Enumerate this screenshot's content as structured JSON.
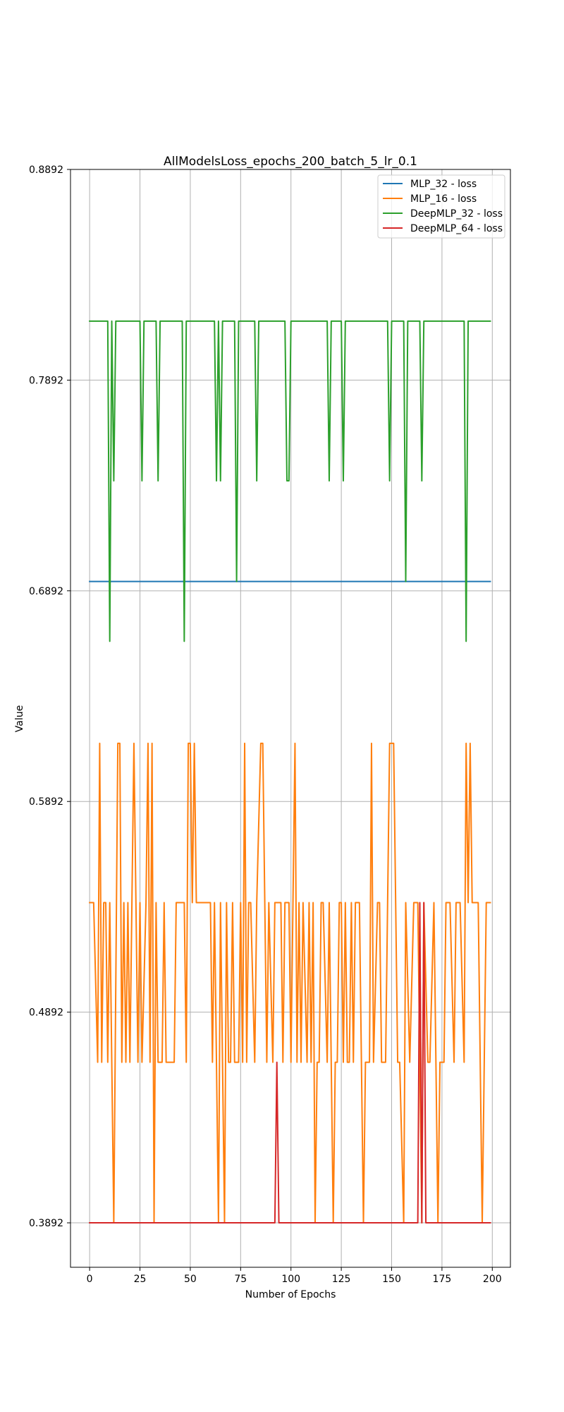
{
  "chart_data": {
    "type": "line",
    "title": "AllModelsLoss_epochs_200_batch_5_lr_0.1",
    "xlabel": "Number of Epochs",
    "ylabel": "Value",
    "xlim": [
      -9.5,
      209
    ],
    "ylim": [
      0.3681,
      0.8892
    ],
    "xticks": [
      0,
      25,
      50,
      75,
      100,
      125,
      150,
      175,
      200
    ],
    "xtick_labels": [
      "0",
      "25",
      "50",
      "75",
      "100",
      "125",
      "150",
      "175",
      "200"
    ],
    "yticks": [
      0.3892,
      0.4892,
      0.5892,
      0.6892,
      0.7892,
      0.8892
    ],
    "ytick_labels": [
      "0.3892",
      "0.4892",
      "0.5892",
      "0.6892",
      "0.7892",
      "0.8892"
    ],
    "grid": true,
    "legend_position": "upper right",
    "colors": {
      "MLP_32 - loss": "#1f77b4",
      "MLP_16 - loss": "#ff7f0e",
      "DeepMLP_32 - loss": "#2ca02c",
      "DeepMLP_64 - loss": "#d62728"
    },
    "series": [
      {
        "name": "MLP_32 - loss",
        "points": [
          [
            0,
            0.6936
          ],
          [
            199,
            0.6936
          ]
        ]
      },
      {
        "name": "MLP_16 - loss",
        "points": [
          [
            0,
            0.5412
          ],
          [
            2,
            0.5412
          ],
          [
            4,
            0.4654
          ],
          [
            5,
            0.6168
          ],
          [
            6,
            0.4654
          ],
          [
            7,
            0.5412
          ],
          [
            8,
            0.5412
          ],
          [
            9,
            0.4654
          ],
          [
            10,
            0.5412
          ],
          [
            12,
            0.3892
          ],
          [
            14,
            0.6168
          ],
          [
            15,
            0.6168
          ],
          [
            16,
            0.4654
          ],
          [
            17,
            0.5412
          ],
          [
            18,
            0.4654
          ],
          [
            19,
            0.5412
          ],
          [
            20,
            0.4654
          ],
          [
            22,
            0.6168
          ],
          [
            24,
            0.4654
          ],
          [
            25,
            0.5412
          ],
          [
            26,
            0.4654
          ],
          [
            28,
            0.5412
          ],
          [
            29,
            0.6168
          ],
          [
            30,
            0.4654
          ],
          [
            31,
            0.6168
          ],
          [
            32,
            0.3892
          ],
          [
            33,
            0.5412
          ],
          [
            34,
            0.4654
          ],
          [
            36,
            0.4654
          ],
          [
            37,
            0.5412
          ],
          [
            38,
            0.4654
          ],
          [
            42,
            0.4654
          ],
          [
            43,
            0.5412
          ],
          [
            47,
            0.5412
          ],
          [
            48,
            0.4654
          ],
          [
            49,
            0.6168
          ],
          [
            50,
            0.6168
          ],
          [
            51,
            0.5412
          ],
          [
            52,
            0.6168
          ],
          [
            53,
            0.5412
          ],
          [
            60,
            0.5412
          ],
          [
            61,
            0.4654
          ],
          [
            62,
            0.5412
          ],
          [
            64,
            0.3892
          ],
          [
            65,
            0.5412
          ],
          [
            66,
            0.4654
          ],
          [
            67,
            0.3892
          ],
          [
            68,
            0.5412
          ],
          [
            69,
            0.4654
          ],
          [
            70,
            0.4654
          ],
          [
            71,
            0.5412
          ],
          [
            72,
            0.4654
          ],
          [
            74,
            0.4654
          ],
          [
            75,
            0.5412
          ],
          [
            76,
            0.4654
          ],
          [
            77,
            0.6168
          ],
          [
            78,
            0.4654
          ],
          [
            79,
            0.5412
          ],
          [
            80,
            0.5412
          ],
          [
            82,
            0.4654
          ],
          [
            83,
            0.5412
          ],
          [
            85,
            0.6168
          ],
          [
            86,
            0.6168
          ],
          [
            88,
            0.4654
          ],
          [
            89,
            0.5412
          ],
          [
            91,
            0.4654
          ],
          [
            92,
            0.5412
          ],
          [
            95,
            0.5412
          ],
          [
            96,
            0.4654
          ],
          [
            97,
            0.5412
          ],
          [
            99,
            0.5412
          ],
          [
            100,
            0.4654
          ],
          [
            102,
            0.6168
          ],
          [
            103,
            0.4654
          ],
          [
            104,
            0.5412
          ],
          [
            105,
            0.4654
          ],
          [
            106,
            0.5412
          ],
          [
            108,
            0.4654
          ],
          [
            109,
            0.5412
          ],
          [
            110,
            0.4654
          ],
          [
            111,
            0.5412
          ],
          [
            112,
            0.3892
          ],
          [
            113,
            0.4654
          ],
          [
            114,
            0.4654
          ],
          [
            115,
            0.5412
          ],
          [
            116,
            0.5412
          ],
          [
            118,
            0.4654
          ],
          [
            119,
            0.5412
          ],
          [
            121,
            0.3892
          ],
          [
            122,
            0.4654
          ],
          [
            123,
            0.4654
          ],
          [
            124,
            0.5412
          ],
          [
            125,
            0.5412
          ],
          [
            126,
            0.4654
          ],
          [
            127,
            0.5412
          ],
          [
            128,
            0.4654
          ],
          [
            129,
            0.4654
          ],
          [
            130,
            0.5412
          ],
          [
            131,
            0.4654
          ],
          [
            132,
            0.5412
          ],
          [
            134,
            0.5412
          ],
          [
            136,
            0.3892
          ],
          [
            137,
            0.4654
          ],
          [
            139,
            0.4654
          ],
          [
            140,
            0.6168
          ],
          [
            141,
            0.4654
          ],
          [
            143,
            0.5412
          ],
          [
            144,
            0.5412
          ],
          [
            145,
            0.4654
          ],
          [
            147,
            0.4654
          ],
          [
            149,
            0.6168
          ],
          [
            151,
            0.6168
          ],
          [
            152,
            0.5412
          ],
          [
            153,
            0.4654
          ],
          [
            154,
            0.4654
          ],
          [
            156,
            0.3892
          ],
          [
            157,
            0.5412
          ],
          [
            159,
            0.4654
          ],
          [
            161,
            0.5412
          ],
          [
            163,
            0.5412
          ],
          [
            164,
            0.4654
          ],
          [
            165,
            0.3892
          ],
          [
            166,
            0.5412
          ],
          [
            168,
            0.4654
          ],
          [
            169,
            0.4654
          ],
          [
            171,
            0.5412
          ],
          [
            173,
            0.3892
          ],
          [
            174,
            0.4654
          ],
          [
            176,
            0.4654
          ],
          [
            177,
            0.5412
          ],
          [
            179,
            0.5412
          ],
          [
            181,
            0.4654
          ],
          [
            182,
            0.5412
          ],
          [
            184,
            0.5412
          ],
          [
            186,
            0.4654
          ],
          [
            187,
            0.6168
          ],
          [
            188,
            0.5412
          ],
          [
            189,
            0.6168
          ],
          [
            190,
            0.5412
          ],
          [
            193,
            0.5412
          ],
          [
            195,
            0.3892
          ],
          [
            197,
            0.5412
          ],
          [
            199,
            0.5412
          ]
        ]
      },
      {
        "name": "DeepMLP_32 - loss",
        "points": [
          [
            0,
            0.8172
          ],
          [
            9,
            0.8172
          ],
          [
            10,
            0.6652
          ],
          [
            11,
            0.8172
          ],
          [
            12,
            0.7414
          ],
          [
            13,
            0.8172
          ],
          [
            25,
            0.8172
          ],
          [
            26,
            0.7414
          ],
          [
            27,
            0.8172
          ],
          [
            33,
            0.8172
          ],
          [
            34,
            0.7414
          ],
          [
            35,
            0.8172
          ],
          [
            46,
            0.8172
          ],
          [
            47,
            0.6652
          ],
          [
            48,
            0.8172
          ],
          [
            62,
            0.8172
          ],
          [
            63,
            0.7414
          ],
          [
            64,
            0.8172
          ],
          [
            65,
            0.7414
          ],
          [
            66,
            0.8172
          ],
          [
            72,
            0.8172
          ],
          [
            73,
            0.6936
          ],
          [
            74,
            0.8172
          ],
          [
            82,
            0.8172
          ],
          [
            83,
            0.7414
          ],
          [
            84,
            0.8172
          ],
          [
            97,
            0.8172
          ],
          [
            98,
            0.7414
          ],
          [
            99,
            0.7414
          ],
          [
            100,
            0.8172
          ],
          [
            118,
            0.8172
          ],
          [
            119,
            0.7414
          ],
          [
            120,
            0.8172
          ],
          [
            125,
            0.8172
          ],
          [
            126,
            0.7414
          ],
          [
            127,
            0.8172
          ],
          [
            148,
            0.8172
          ],
          [
            149,
            0.7414
          ],
          [
            150,
            0.8172
          ],
          [
            156,
            0.8172
          ],
          [
            157,
            0.6936
          ],
          [
            158,
            0.8172
          ],
          [
            164,
            0.8172
          ],
          [
            165,
            0.7414
          ],
          [
            166,
            0.8172
          ],
          [
            186,
            0.8172
          ],
          [
            187,
            0.6652
          ],
          [
            188,
            0.8172
          ],
          [
            199,
            0.8172
          ]
        ]
      },
      {
        "name": "DeepMLP_64 - loss",
        "points": [
          [
            0,
            0.3892
          ],
          [
            92,
            0.3892
          ],
          [
            93,
            0.4654
          ],
          [
            94,
            0.3892
          ],
          [
            163,
            0.3892
          ],
          [
            164,
            0.5412
          ],
          [
            165,
            0.3892
          ],
          [
            166,
            0.5412
          ],
          [
            167,
            0.3892
          ],
          [
            199,
            0.3892
          ]
        ]
      }
    ]
  }
}
